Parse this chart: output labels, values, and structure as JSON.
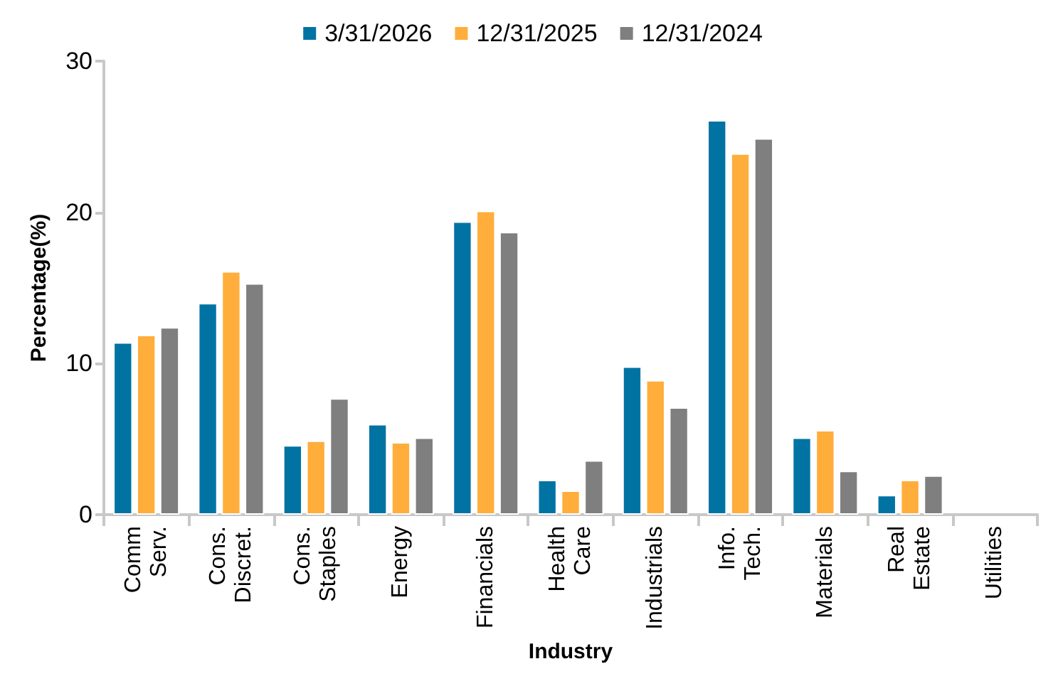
{
  "chart_data": {
    "type": "bar",
    "xlabel": "Industry",
    "ylabel": "Percentage(%)",
    "categories": [
      "Comm\nServ.",
      "Cons.\nDiscret.",
      "Cons.\nStaples",
      "Energy",
      "Financials",
      "Health\nCare",
      "Industrials",
      "Info.\nTech.",
      "Materials",
      "Real\nEstate",
      "Utilities"
    ],
    "series": [
      {
        "name": "3/31/2026",
        "color": "#0073a3",
        "values": [
          11.4,
          14.0,
          4.6,
          6.0,
          19.4,
          2.3,
          9.8,
          26.1,
          5.1,
          1.3,
          null
        ]
      },
      {
        "name": "12/31/2025",
        "color": "#ffad3b",
        "values": [
          11.9,
          16.1,
          4.9,
          4.8,
          20.1,
          1.6,
          8.9,
          23.9,
          5.6,
          2.3,
          null
        ]
      },
      {
        "name": "12/31/2024",
        "color": "#7f7f7f",
        "values": [
          12.4,
          15.3,
          7.7,
          5.1,
          18.7,
          3.6,
          7.1,
          24.9,
          2.9,
          2.6,
          null
        ]
      }
    ],
    "ylim": [
      0,
      30
    ],
    "yticks": [
      0,
      10,
      20,
      30
    ],
    "grid": false,
    "legend": "top"
  }
}
